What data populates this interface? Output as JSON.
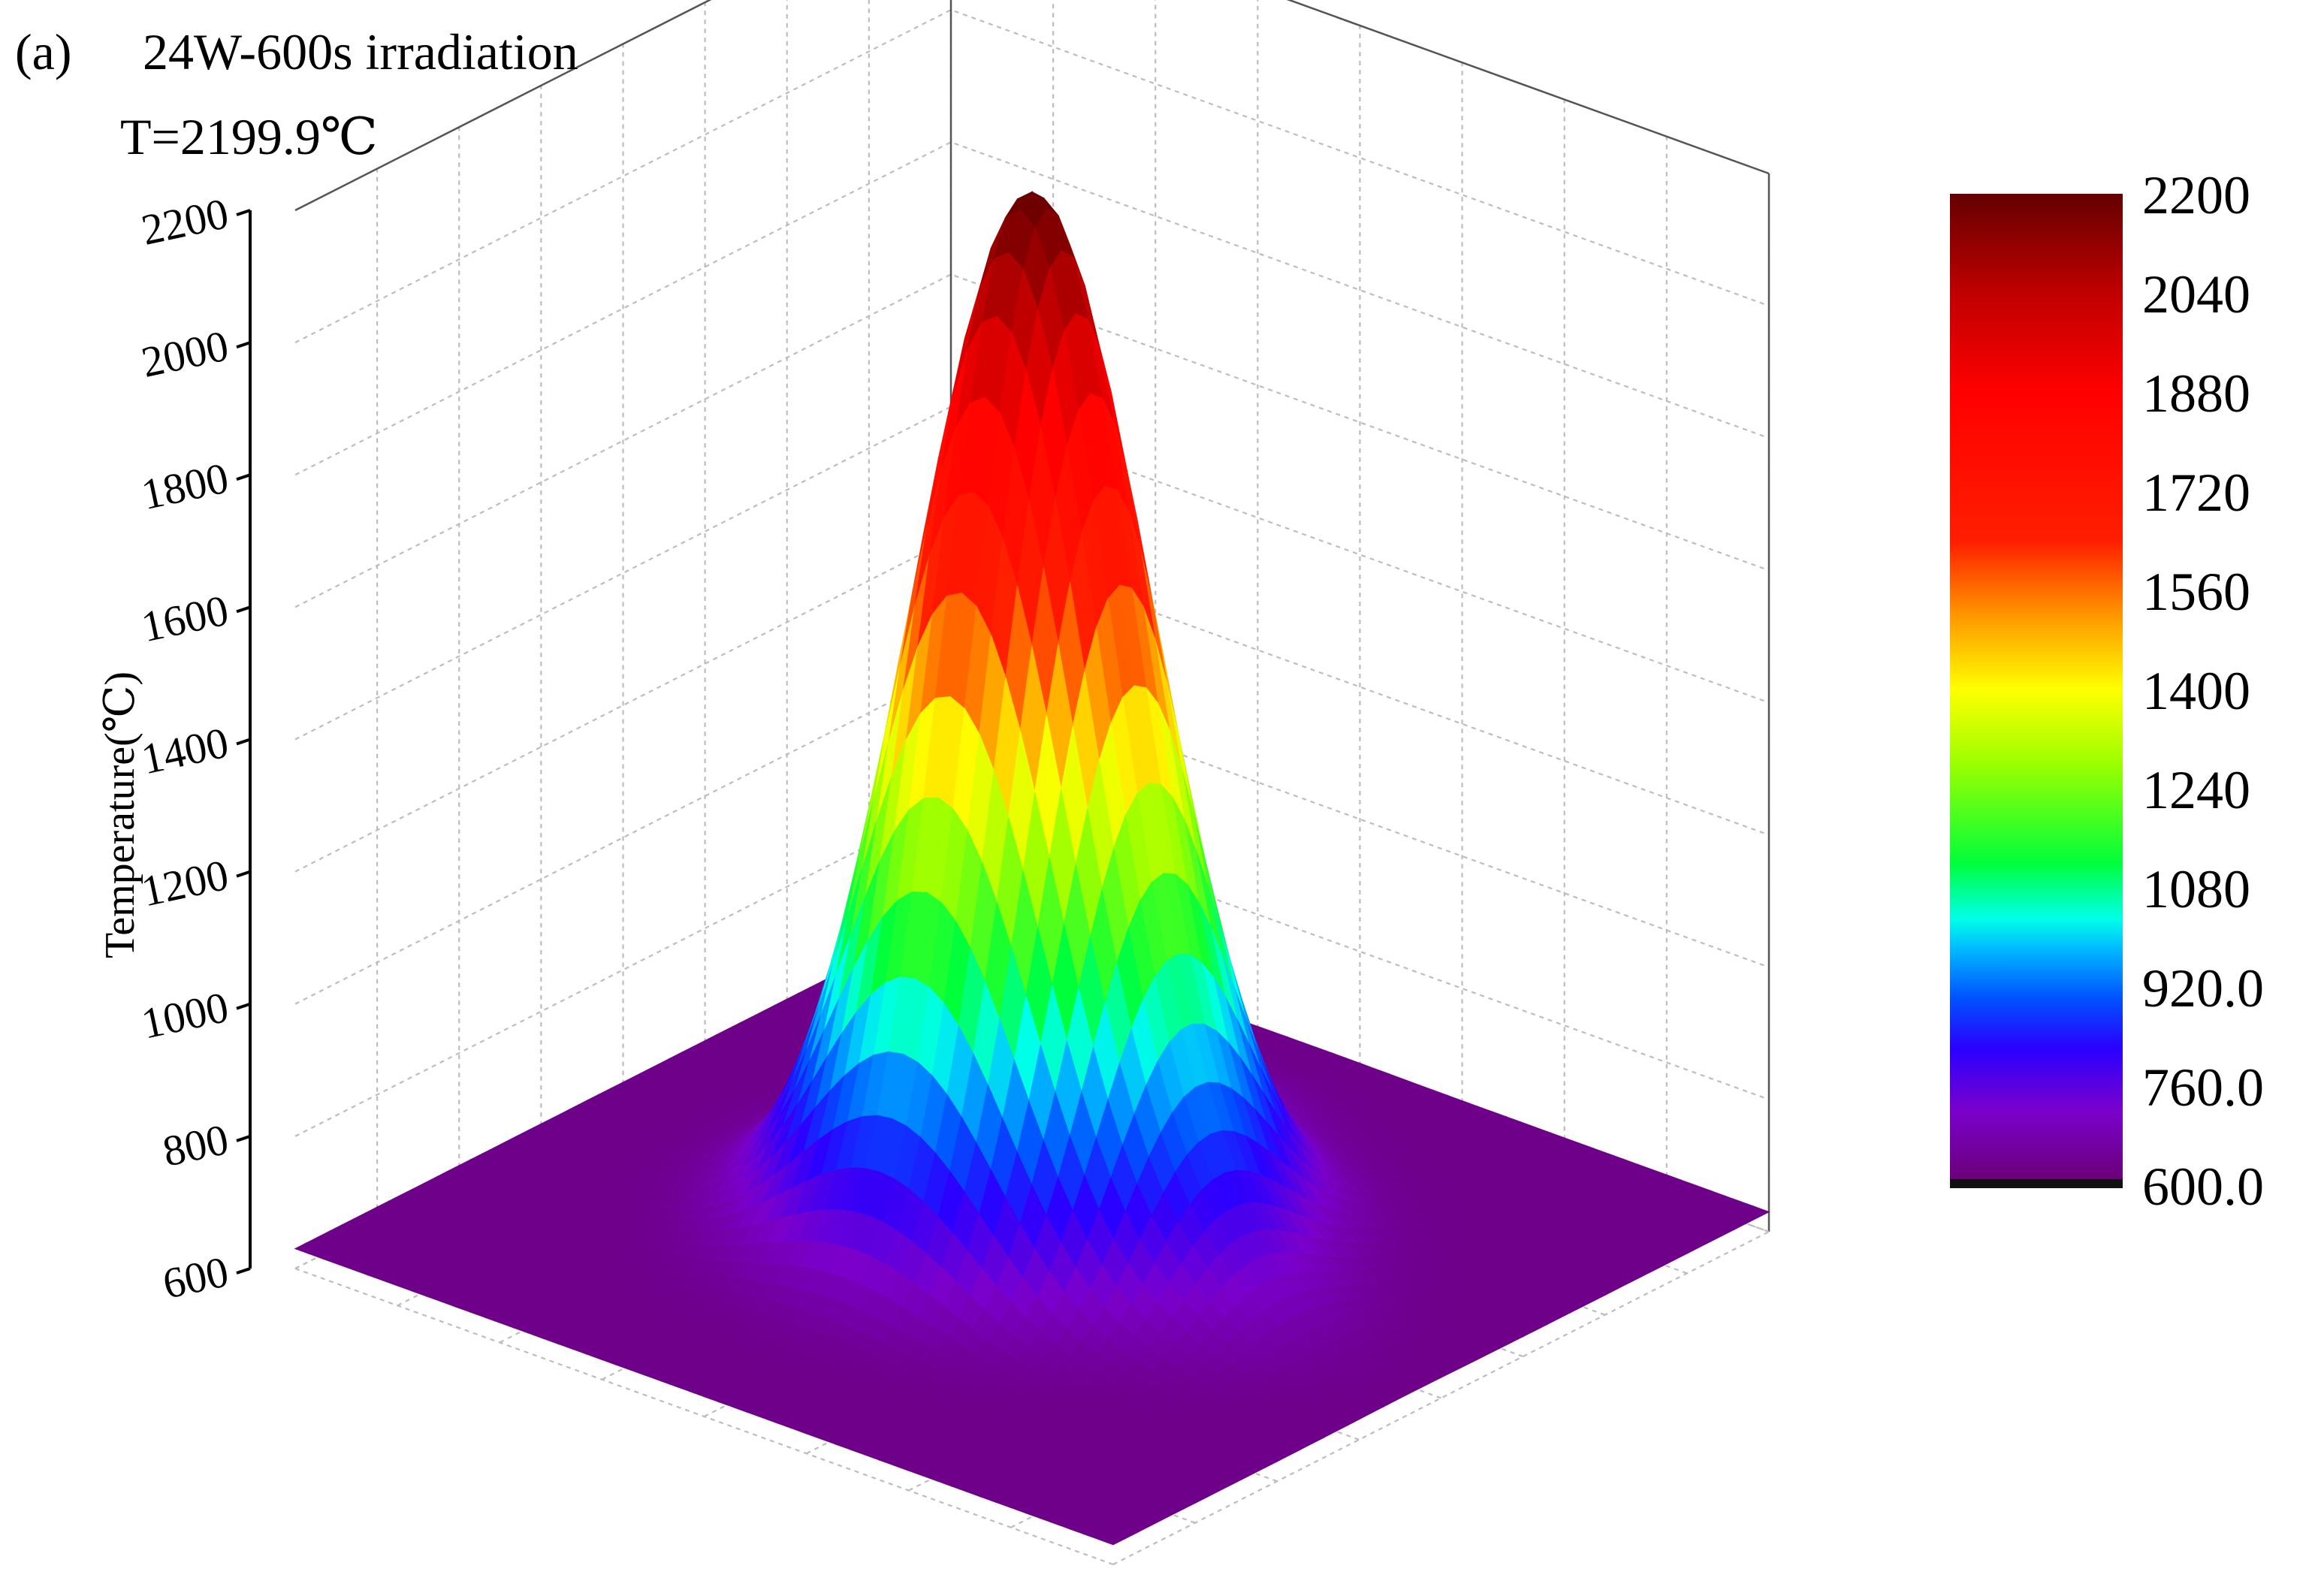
{
  "panel_label": "(a)",
  "title": "24W-600s irradiation",
  "subtitle": "T=2199.9℃",
  "chart_data": {
    "type": "surface",
    "title": "24W-600s irradiation",
    "annotation": "T=2199.9℃",
    "zlabel": "Temperature(℃)",
    "zlim": [
      600,
      2200
    ],
    "z_ticks": [
      "600",
      "800",
      "1000",
      "1200",
      "1400",
      "1600",
      "1800",
      "2000",
      "2200"
    ],
    "z_tick_values": [
      600,
      800,
      1000,
      1200,
      1400,
      1600,
      1800,
      2000,
      2200
    ],
    "peak_value": 2199.9,
    "base_value": 630,
    "grid": true,
    "colormap": "rainbow",
    "colorbar": {
      "min": 600,
      "max": 2200,
      "ticks": [
        "2200",
        "2040",
        "1880",
        "1720",
        "1560",
        "1400",
        "1240",
        "1080",
        "920.0",
        "760.0",
        "600.0"
      ],
      "tick_values": [
        2200,
        2040,
        1880,
        1720,
        1560,
        1400,
        1240,
        1080,
        920,
        760,
        600
      ],
      "stops": [
        {
          "value": 600,
          "color": "#6a0072"
        },
        {
          "value": 720,
          "color": "#7a00cc"
        },
        {
          "value": 820,
          "color": "#2a00ff"
        },
        {
          "value": 900,
          "color": "#0050ff"
        },
        {
          "value": 980,
          "color": "#00b8ff"
        },
        {
          "value": 1030,
          "color": "#00ffe8"
        },
        {
          "value": 1120,
          "color": "#00ff3a"
        },
        {
          "value": 1280,
          "color": "#9cff00"
        },
        {
          "value": 1400,
          "color": "#ffff00"
        },
        {
          "value": 1520,
          "color": "#ff9600"
        },
        {
          "value": 1640,
          "color": "#ff1e00"
        },
        {
          "value": 1880,
          "color": "#ff0000"
        },
        {
          "value": 2040,
          "color": "#c00000"
        },
        {
          "value": 2200,
          "color": "#640000"
        }
      ]
    }
  }
}
